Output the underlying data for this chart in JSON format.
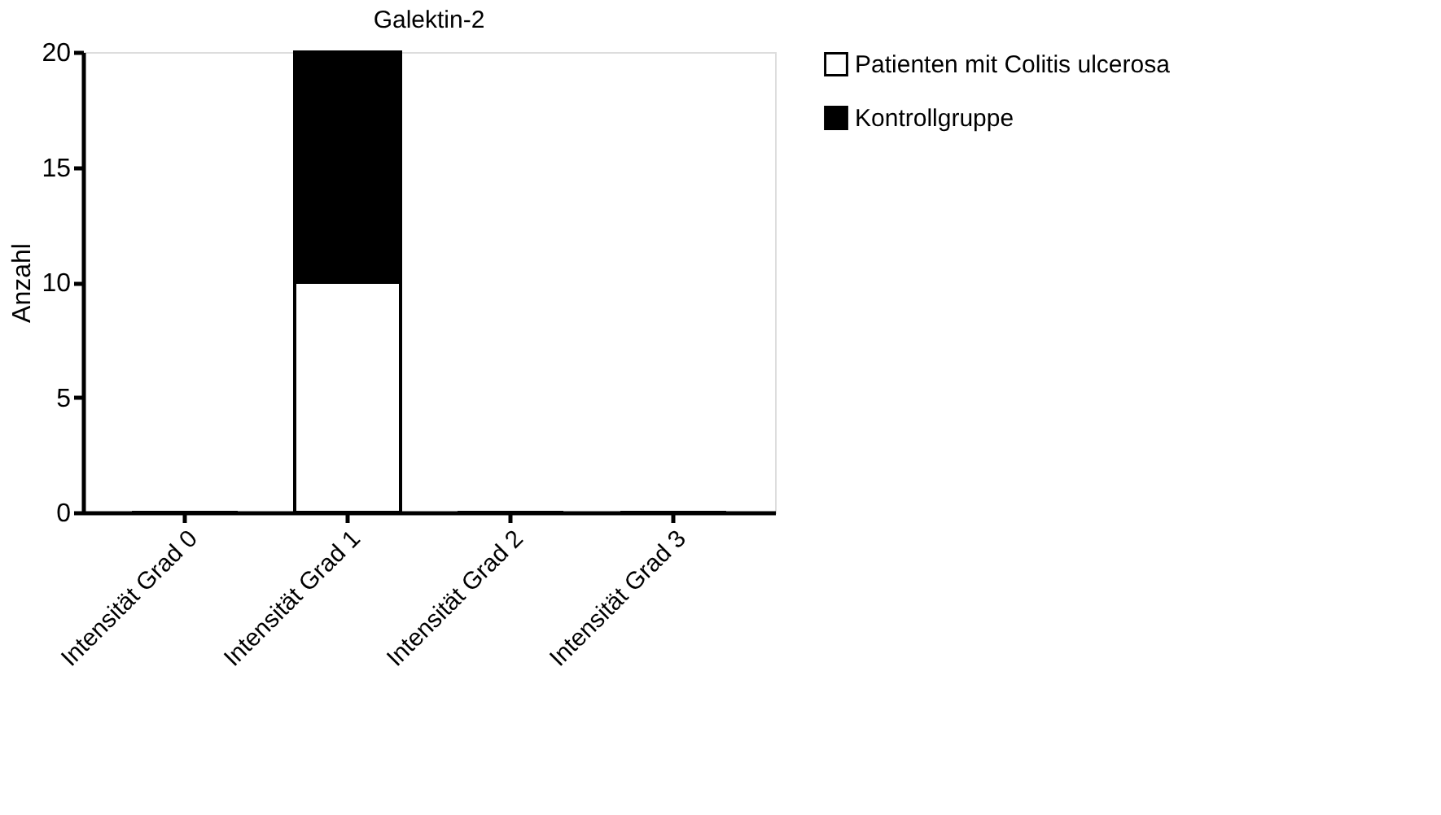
{
  "chart_data": {
    "type": "bar",
    "title": "Galektin-2",
    "ylabel": "Anzahl",
    "categories": [
      "Intensität Grad 0",
      "Intensität Grad 1",
      "Intensität Grad 2",
      "Intensität Grad 3"
    ],
    "series": [
      {
        "name": "Patienten mit Colitis ulcerosa",
        "color": "#ffffff",
        "values": [
          0,
          10,
          0,
          0
        ]
      },
      {
        "name": "Kontrollgruppe",
        "color": "#000000",
        "values": [
          0,
          10,
          0,
          0
        ]
      }
    ],
    "stacked": true,
    "ylim": [
      0,
      20
    ],
    "yticks": [
      0,
      5,
      10,
      15,
      20
    ],
    "grid": false,
    "legend": "top right"
  }
}
